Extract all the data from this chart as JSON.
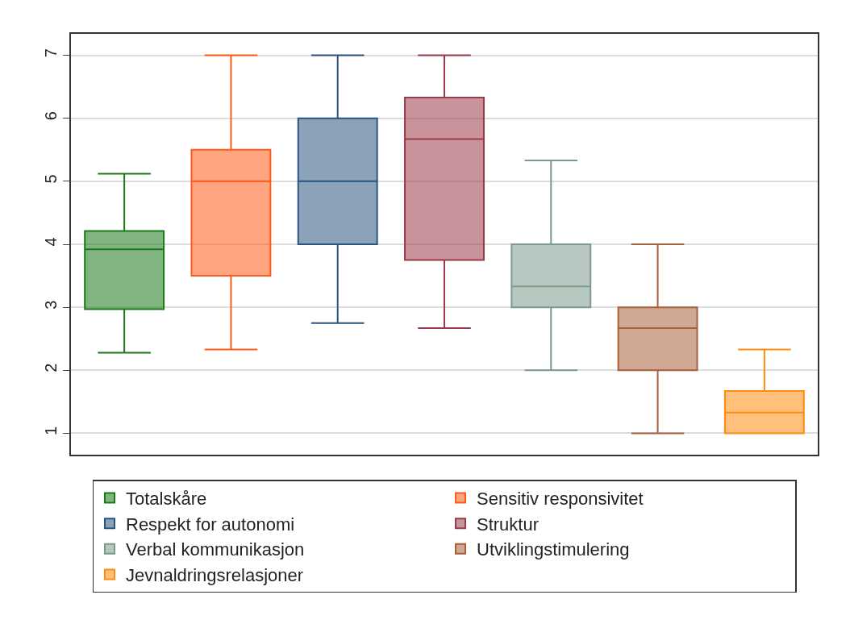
{
  "chart_data": {
    "type": "box",
    "categories": [
      null,
      null,
      null,
      null,
      null,
      null,
      null
    ],
    "ylim": [
      0.66,
      7.34
    ],
    "yticks": [
      1,
      2,
      3,
      4,
      5,
      6,
      7
    ],
    "grid": "y",
    "legend": "bottom",
    "series": [
      {
        "name": "Totalskåre",
        "color": "#1a7a1a",
        "boxes": [
          {
            "low": 2.28,
            "q1": 2.97,
            "median": 3.92,
            "q3": 4.21,
            "high": 5.12
          },
          null,
          null,
          null,
          null,
          null,
          null
        ]
      },
      {
        "name": "Sensitiv responsivitet",
        "color": "#ff5a1a",
        "boxes": [
          null,
          {
            "low": 2.33,
            "q1": 3.5,
            "median": 5.0,
            "q3": 5.5,
            "high": 7.0
          },
          null,
          null,
          null,
          null,
          null
        ]
      },
      {
        "name": "Respekt for autonomi",
        "color": "#2b5580",
        "boxes": [
          null,
          null,
          {
            "low": 2.75,
            "q1": 4.0,
            "median": 5.0,
            "q3": 6.0,
            "high": 7.0
          },
          null,
          null,
          null,
          null
        ]
      },
      {
        "name": "Struktur",
        "color": "#9a3a48",
        "boxes": [
          null,
          null,
          null,
          {
            "low": 2.67,
            "q1": 3.75,
            "median": 5.67,
            "q3": 6.33,
            "high": 7.0
          },
          null,
          null,
          null
        ]
      },
      {
        "name": "Verbal kommunikasjon",
        "color": "#7a9a8c",
        "boxes": [
          null,
          null,
          null,
          null,
          {
            "low": 2.0,
            "q1": 3.0,
            "median": 3.33,
            "q3": 4.0,
            "high": 5.33
          },
          null,
          null
        ]
      },
      {
        "name": "Utviklingstimulering",
        "color": "#a8603c",
        "boxes": [
          null,
          null,
          null,
          null,
          null,
          {
            "low": 1.0,
            "q1": 2.0,
            "median": 2.67,
            "q3": 3.0,
            "high": 4.0
          },
          null
        ]
      },
      {
        "name": "Jevnaldringsrelasjoner",
        "color": "#ff8c10",
        "boxes": [
          null,
          null,
          null,
          null,
          null,
          null,
          {
            "low": 1.0,
            "q1": 1.0,
            "median": 1.33,
            "q3": 1.67,
            "high": 2.33
          }
        ]
      }
    ]
  }
}
